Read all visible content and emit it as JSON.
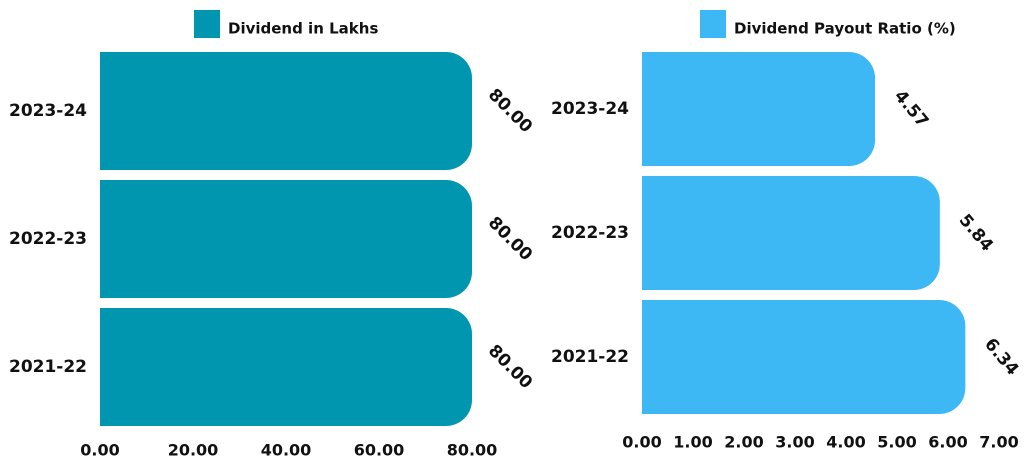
{
  "chart_data": [
    {
      "type": "bar",
      "orientation": "horizontal",
      "legend": "Dividend in Lakhs",
      "legend_placement": "top",
      "categories": [
        "2023-24",
        "2022-23",
        "2021-22"
      ],
      "series": [
        {
          "name": "Dividend in Lakhs",
          "values": [
            80.0,
            80.0,
            80.0
          ],
          "color": "#0096b0"
        }
      ],
      "data_labels": [
        "80.00",
        "80.00",
        "80.00"
      ],
      "xlim": [
        0,
        80
      ],
      "x_ticks": [
        "0.00",
        "20.00",
        "40.00",
        "60.00",
        "80.00"
      ],
      "grid": false
    },
    {
      "type": "bar",
      "orientation": "horizontal",
      "legend": "Dividend Payout Ratio (%)",
      "legend_placement": "top",
      "categories": [
        "2023-24",
        "2022-23",
        "2021-22"
      ],
      "series": [
        {
          "name": "Dividend Payout Ratio (%)",
          "values": [
            4.57,
            5.84,
            6.34
          ],
          "color": "#3db8f5"
        }
      ],
      "data_labels": [
        "4.57",
        "5.84",
        "6.34"
      ],
      "xlim": [
        0,
        7
      ],
      "x_ticks": [
        "0.00",
        "1.00",
        "2.00",
        "3.00",
        "4.00",
        "5.00",
        "6.00",
        "7.00"
      ],
      "grid": false
    }
  ]
}
